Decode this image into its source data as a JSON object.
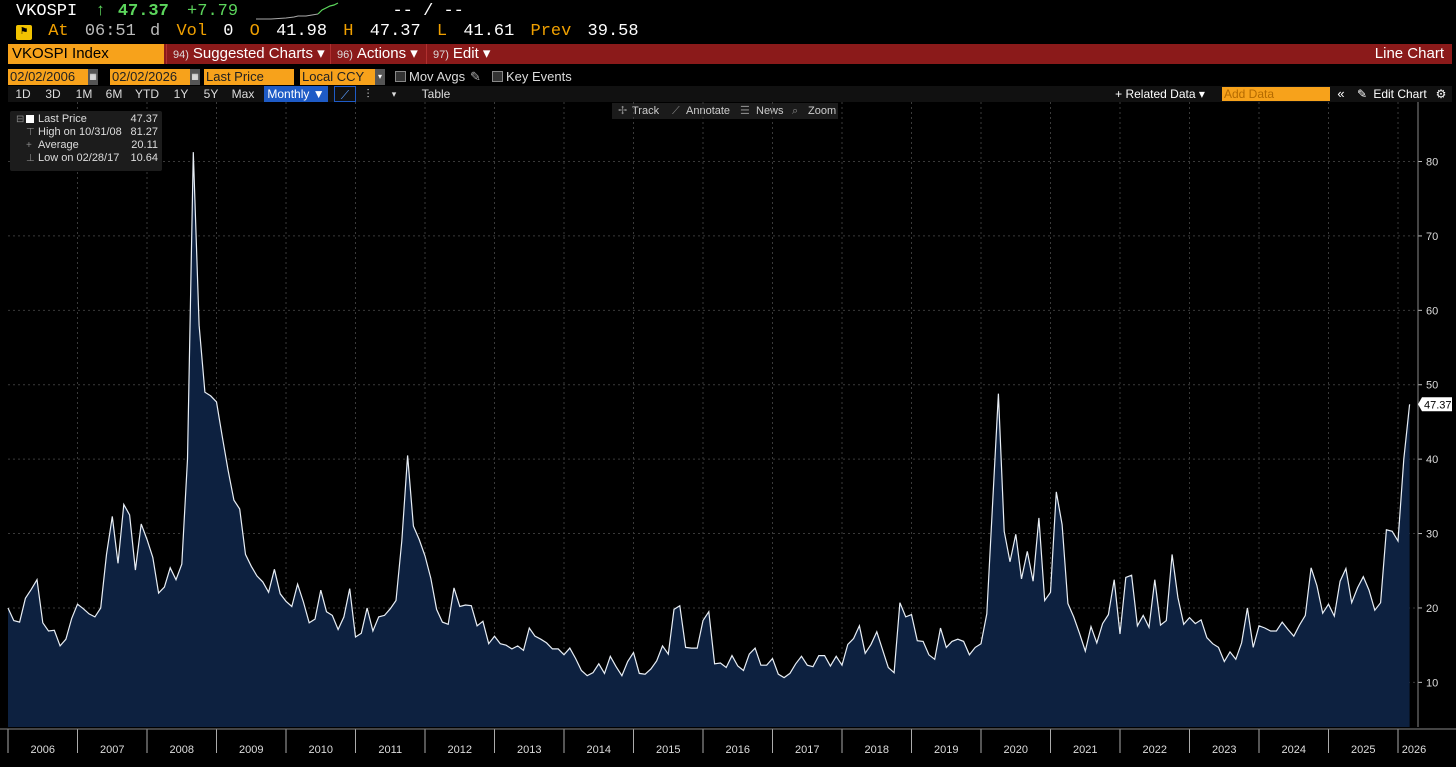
{
  "quote": {
    "ticker": "VKOSPI",
    "arrow": "↑",
    "last": "47.37",
    "change": "+7.79",
    "bidask": "-- / --",
    "at_label": "At",
    "time": "06:51",
    "time_flag": "d",
    "vol_label": "Vol",
    "vol": "0",
    "open_label": "O",
    "open": "41.98",
    "high_label": "H",
    "high": "47.37",
    "low_label": "L",
    "low": "41.61",
    "prev_label": "Prev",
    "prev": "39.58"
  },
  "menubar": {
    "security": "VKOSPI Index",
    "suggested": {
      "num": "94)",
      "label": "Suggested Charts ▾"
    },
    "actions": {
      "num": "96)",
      "label": "Actions ▾"
    },
    "edit": {
      "num": "97)",
      "label": "Edit ▾"
    },
    "chart_type": "Line Chart"
  },
  "controls": {
    "start_date": "02/02/2006",
    "end_date": "02/02/2026",
    "field": "Last Price",
    "currency": "Local CCY",
    "mov_avgs": "Mov Avgs",
    "key_events": "Key Events"
  },
  "timebar": {
    "periods": [
      "1D",
      "3D",
      "1M",
      "6M",
      "YTD",
      "1Y",
      "5Y",
      "Max"
    ],
    "frequency": "Monthly ▼",
    "table": "Table",
    "related_data": "+ Related Data ▾",
    "add_data_placeholder": "Add Data",
    "edit_chart": "Edit Chart"
  },
  "tools": {
    "track": "Track",
    "annotate": "Annotate",
    "news": "News",
    "zoom": "Zoom"
  },
  "legend": {
    "last_price": {
      "label": "Last Price",
      "value": "47.37"
    },
    "high": {
      "label": "High on 10/31/08",
      "value": "81.27"
    },
    "average": {
      "label": "Average",
      "value": "20.11"
    },
    "low": {
      "label": "Low on 02/28/17",
      "value": "10.64"
    }
  },
  "colors": {
    "accent_orange": "#f7a21b",
    "menubar_red": "#8b1a1a",
    "area_fill": "#0d2140",
    "line": "#e8eef5",
    "up_green": "#5cd65c"
  },
  "chart_data": {
    "type": "area",
    "frequency": "monthly",
    "x_start": "2006-01",
    "x_end": "2026-01",
    "ylim": [
      4,
      88
    ],
    "yticks": [
      10,
      20,
      30,
      40,
      50,
      60,
      70,
      80
    ],
    "x_tick_labels": [
      "2006",
      "2007",
      "2008",
      "2009",
      "2010",
      "2011",
      "2012",
      "2013",
      "2014",
      "2015",
      "2016",
      "2017",
      "2018",
      "2019",
      "2020",
      "2021",
      "2022",
      "2023",
      "2024",
      "2025",
      "2026"
    ],
    "last_value_label": "47.37",
    "grid": true,
    "series": [
      {
        "values": [
          20.0,
          18.3,
          18.1,
          21.3,
          22.5,
          23.8,
          18.0,
          16.9,
          17.0,
          14.9,
          15.8,
          18.6,
          20.5,
          19.9,
          19.2,
          18.8,
          20.0,
          27.2,
          32.3,
          26.0,
          33.9,
          32.5,
          25.1,
          31.3,
          29.2,
          26.8,
          22.0,
          22.8,
          25.4,
          23.8,
          25.9,
          40.0,
          81.27,
          58.0,
          49.0,
          48.5,
          47.7,
          43.0,
          38.5,
          34.5,
          33.3,
          27.2,
          25.6,
          24.3,
          23.5,
          22.1,
          25.2,
          21.9,
          20.9,
          20.2,
          23.2,
          20.8,
          18.0,
          18.5,
          22.4,
          19.5,
          19.0,
          17.1,
          18.8,
          22.6,
          16.1,
          16.6,
          20.0,
          16.9,
          18.8,
          19.0,
          19.9,
          21.0,
          29.0,
          40.5,
          31.0,
          29.2,
          27.0,
          24.0,
          19.8,
          18.1,
          17.8,
          22.7,
          20.2,
          20.4,
          20.3,
          17.6,
          18.2,
          15.2,
          16.2,
          15.2,
          15.0,
          14.5,
          14.9,
          14.3,
          17.3,
          16.2,
          15.8,
          15.3,
          14.5,
          14.5,
          13.7,
          14.6,
          13.2,
          11.6,
          10.9,
          11.3,
          12.5,
          11.2,
          13.5,
          12.1,
          10.9,
          12.8,
          14.0,
          11.2,
          11.1,
          11.8,
          12.9,
          14.9,
          13.8,
          19.8,
          20.3,
          14.7,
          14.6,
          14.6,
          18.3,
          19.5,
          12.5,
          12.6,
          12.0,
          13.6,
          12.2,
          11.6,
          13.8,
          14.6,
          12.3,
          12.3,
          13.2,
          11.1,
          10.64,
          11.2,
          12.5,
          13.5,
          12.3,
          12.1,
          13.6,
          13.6,
          12.2,
          13.5,
          12.3,
          15.1,
          15.9,
          17.6,
          13.9,
          15.1,
          16.8,
          14.4,
          12.0,
          11.3,
          20.7,
          18.8,
          19.1,
          15.6,
          15.5,
          13.7,
          13.1,
          17.3,
          14.7,
          15.5,
          15.8,
          15.5,
          13.7,
          14.7,
          15.2,
          19.2,
          34.0,
          48.8,
          30.3,
          26.2,
          29.9,
          23.9,
          27.6,
          23.6,
          32.1,
          21.0,
          22.1,
          35.6,
          31.2,
          20.6,
          18.8,
          16.6,
          14.2,
          17.5,
          15.3,
          17.9,
          19.1,
          23.8,
          16.5,
          24.1,
          24.4,
          17.6,
          19.0,
          17.4,
          23.8,
          17.7,
          18.3,
          27.2,
          21.4,
          17.8,
          18.7,
          17.9,
          18.4,
          16.0,
          15.2,
          14.7,
          12.8,
          14.1,
          13.1,
          15.3,
          20.0,
          14.7,
          17.6,
          17.3,
          16.9,
          16.9,
          18.1,
          17.1,
          16.2,
          17.7,
          19.0,
          25.4,
          23.0,
          19.3,
          20.5,
          18.9,
          23.6,
          25.3,
          20.7,
          22.7,
          24.2,
          22.4,
          19.7,
          20.7,
          30.5,
          30.3,
          29.0,
          40.0,
          47.37
        ]
      }
    ]
  }
}
